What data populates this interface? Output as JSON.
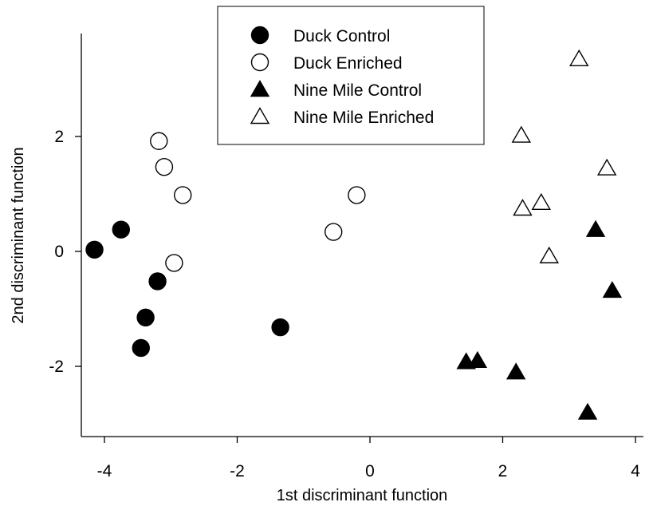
{
  "chart_data": {
    "type": "scatter",
    "title": "",
    "xlabel": "1st discriminant function",
    "ylabel": "2nd discriminant function",
    "xlim": [
      -4.3,
      4.2
    ],
    "ylim": [
      -3.2,
      3.7
    ],
    "xticks": [
      -4,
      -2,
      0,
      2,
      4
    ],
    "yticks": [
      -2,
      0,
      2
    ],
    "xtick_labels": [
      "-4",
      "-2",
      "0",
      "2",
      "4"
    ],
    "ytick_labels": [
      "-2",
      "0",
      "2"
    ],
    "grid": false,
    "legend_position": "top-center",
    "series": [
      {
        "name": "Duck Control",
        "marker": "circle",
        "filled": true,
        "x": [
          -4.15,
          -3.75,
          -3.2,
          -3.38,
          -3.45,
          -1.35
        ],
        "y": [
          0.03,
          0.38,
          -0.52,
          -1.15,
          -1.68,
          -1.32
        ]
      },
      {
        "name": "Duck Enriched",
        "marker": "circle",
        "filled": false,
        "x": [
          -3.18,
          -3.1,
          -2.82,
          -2.95,
          -0.2,
          -0.55
        ],
        "y": [
          1.92,
          1.47,
          0.98,
          -0.2,
          0.98,
          0.34
        ]
      },
      {
        "name": "Nine Mile Control",
        "marker": "triangle",
        "filled": true,
        "x": [
          3.4,
          3.65,
          1.45,
          1.62,
          2.2,
          3.28
        ],
        "y": [
          0.38,
          -0.68,
          -1.92,
          -1.9,
          -2.1,
          -2.8
        ]
      },
      {
        "name": "Nine Mile Enriched",
        "marker": "triangle",
        "filled": false,
        "x": [
          3.15,
          2.28,
          3.57,
          2.58,
          2.3,
          2.7
        ],
        "y": [
          3.35,
          2.02,
          1.45,
          0.85,
          0.75,
          -0.08
        ]
      }
    ]
  }
}
